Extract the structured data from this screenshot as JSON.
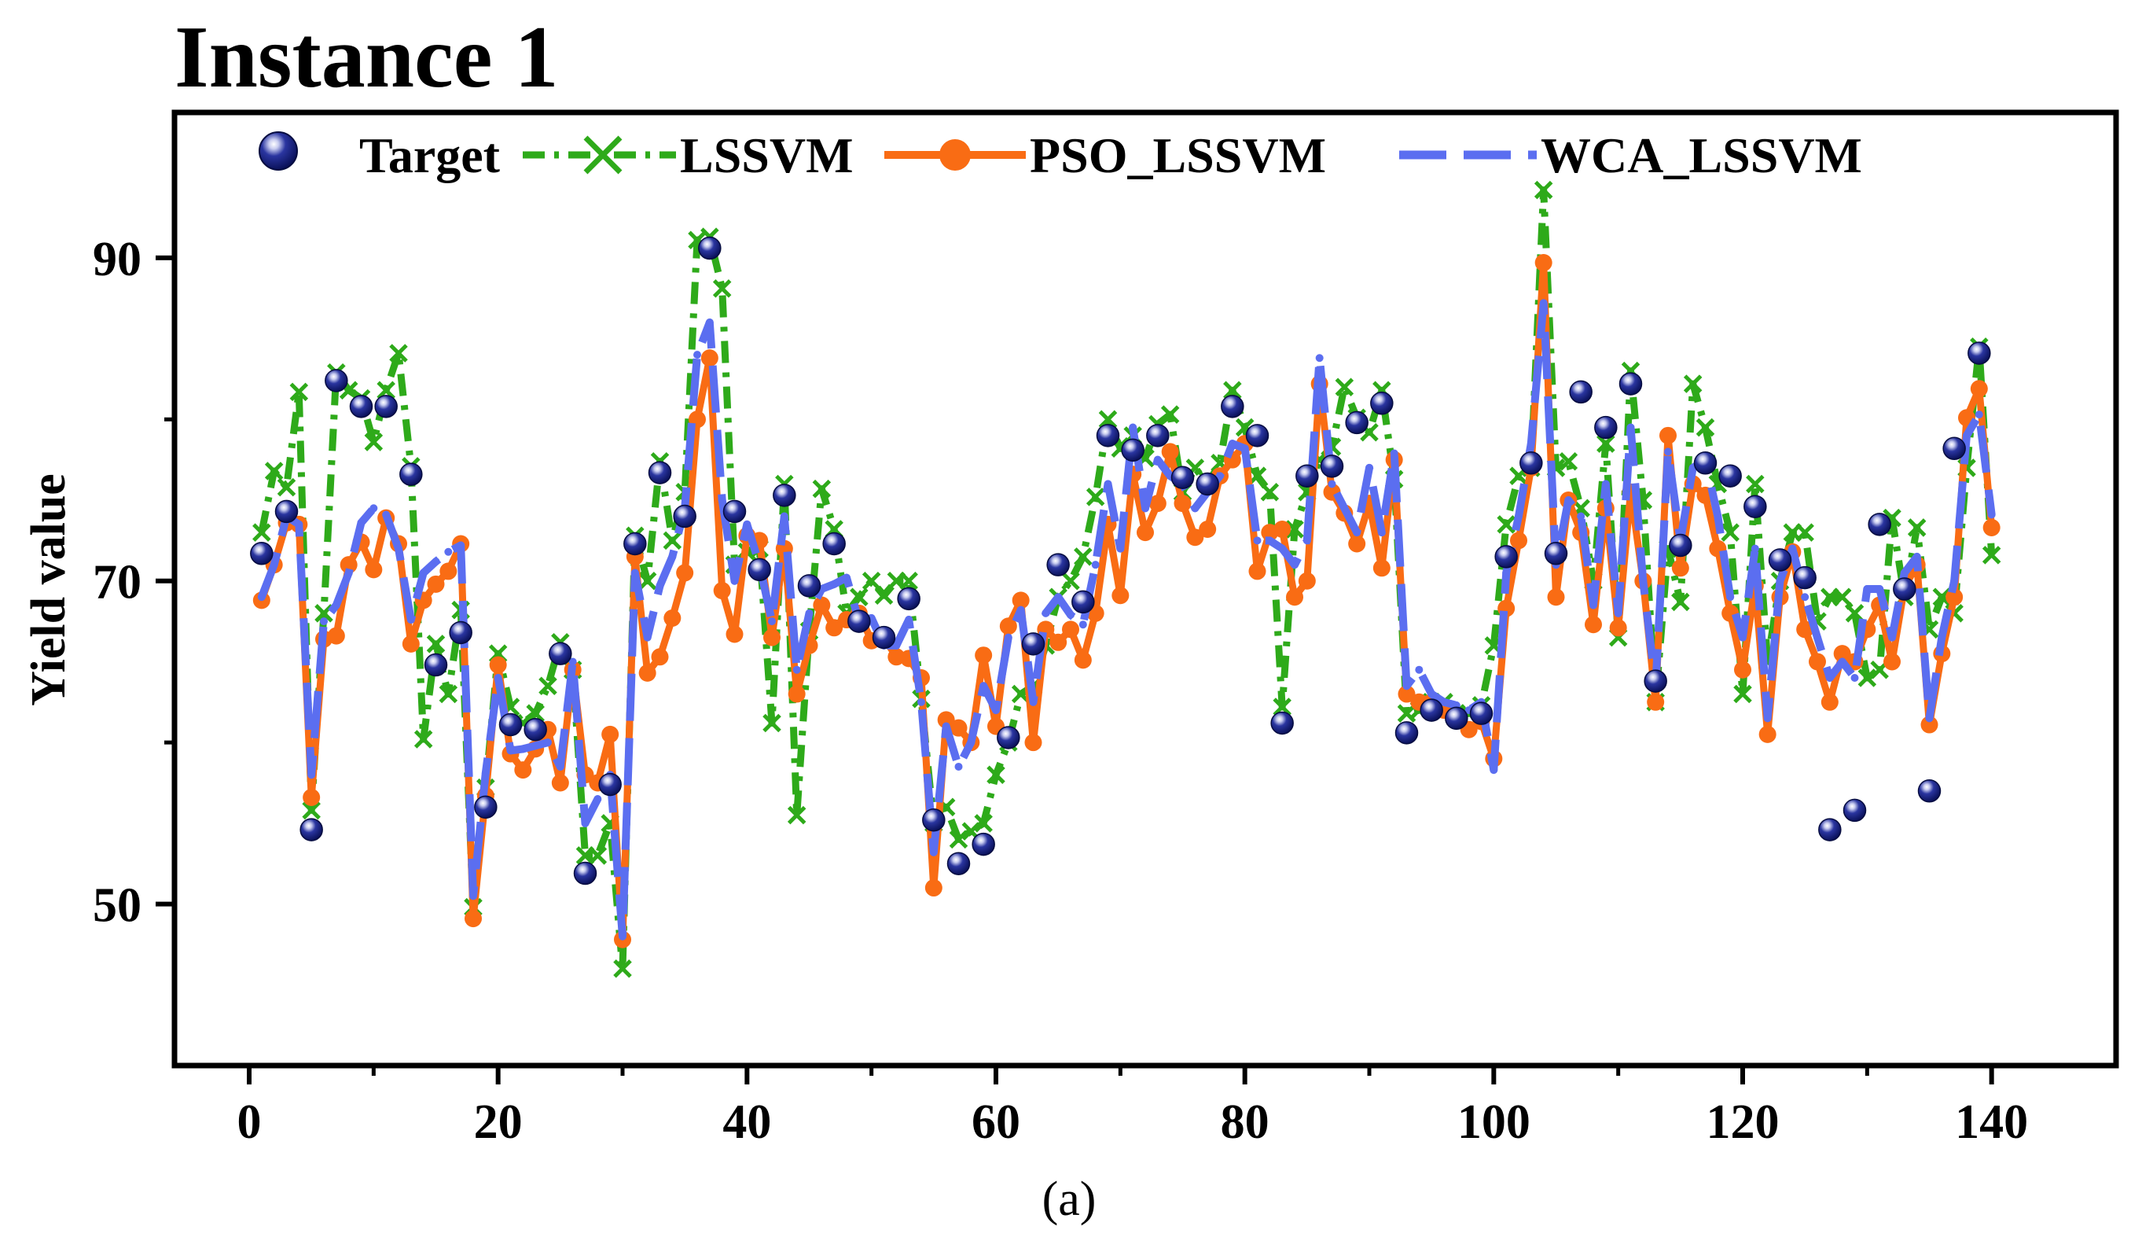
{
  "chart_data": {
    "type": "line",
    "title": "Instance 1",
    "caption": "(a)",
    "xlabel": "",
    "ylabel": "Yield value",
    "xlim": [
      -6,
      150
    ],
    "ylim": [
      40,
      99
    ],
    "xticks": [
      0,
      20,
      40,
      60,
      80,
      100,
      120,
      140
    ],
    "yticks_labeled": [
      50,
      70,
      90
    ],
    "yticks_minor": [
      60,
      80
    ],
    "legend_position": "top",
    "x": [
      1,
      2,
      3,
      4,
      5,
      6,
      7,
      8,
      9,
      10,
      11,
      12,
      13,
      14,
      15,
      16,
      17,
      18,
      19,
      20,
      21,
      22,
      23,
      24,
      25,
      26,
      27,
      28,
      29,
      30,
      31,
      32,
      33,
      34,
      35,
      36,
      37,
      38,
      39,
      40,
      41,
      42,
      43,
      44,
      45,
      46,
      47,
      48,
      49,
      50,
      51,
      52,
      53,
      54,
      55,
      56,
      57,
      58,
      59,
      60,
      61,
      62,
      63,
      64,
      65,
      66,
      67,
      68,
      69,
      70,
      71,
      72,
      73,
      74,
      75,
      76,
      77,
      78,
      79,
      80,
      81,
      82,
      83,
      84,
      85,
      86,
      87,
      88,
      89,
      90,
      91,
      92,
      93,
      94,
      95,
      96,
      97,
      98,
      99,
      100,
      101,
      102,
      103,
      104,
      105,
      106,
      107,
      108,
      109,
      110,
      111,
      112,
      113,
      114,
      115,
      116,
      117,
      118,
      119,
      120,
      121,
      122,
      123,
      124,
      125,
      126,
      127,
      128,
      129,
      130,
      131,
      132,
      133,
      134,
      135,
      136,
      137,
      138,
      139,
      140
    ],
    "series": [
      {
        "name": "Target",
        "style": "markers",
        "color": "#0d1a6e",
        "values": [
          71.7,
          null,
          74.3,
          null,
          54.6,
          null,
          82.4,
          null,
          80.8,
          null,
          80.8,
          null,
          76.6,
          null,
          64.8,
          null,
          66.8,
          null,
          56.0,
          null,
          61.1,
          null,
          60.8,
          null,
          65.5,
          null,
          51.9,
          null,
          57.4,
          null,
          72.3,
          null,
          76.7,
          null,
          74.0,
          null,
          90.6,
          null,
          74.3,
          null,
          70.7,
          null,
          75.3,
          null,
          69.7,
          null,
          72.3,
          null,
          67.5,
          null,
          66.5,
          null,
          68.9,
          null,
          55.2,
          null,
          52.5,
          null,
          53.7,
          null,
          60.3,
          null,
          66.1,
          null,
          71.0,
          null,
          68.7,
          null,
          79.0,
          null,
          78.1,
          null,
          79.0,
          null,
          76.4,
          null,
          76.0,
          null,
          80.8,
          null,
          79.0,
          null,
          61.2,
          null,
          76.5,
          null,
          77.1,
          null,
          79.8,
          null,
          81.0,
          null,
          60.6,
          null,
          62.0,
          null,
          61.5,
          null,
          61.8,
          null,
          71.5,
          null,
          77.3,
          null,
          71.7,
          null,
          81.7,
          null,
          79.5,
          null,
          82.2,
          null,
          63.8,
          null,
          72.2,
          null,
          77.3,
          null,
          76.5,
          null,
          74.6,
          null,
          71.3,
          null,
          70.2,
          null,
          54.6,
          null,
          55.8,
          null,
          73.5,
          null,
          69.5,
          null,
          57.0,
          null,
          78.2,
          null,
          84.1,
          null
        ]
      },
      {
        "name": "LSSVM",
        "style": "dash-dot-x",
        "color": "#2eaa1a",
        "values": [
          73.0,
          76.8,
          75.8,
          81.7,
          55.8,
          68.0,
          82.9,
          81.8,
          81.3,
          78.6,
          81.8,
          84.1,
          77.1,
          60.2,
          66.1,
          63.0,
          68.2,
          49.8,
          57.2,
          65.5,
          62.2,
          61.2,
          61.8,
          63.5,
          66.2,
          64.5,
          53.0,
          53.0,
          55.0,
          46.0,
          72.8,
          70.0,
          77.4,
          72.5,
          75.5,
          91.1,
          91.3,
          88.1,
          71.0,
          71.8,
          72.0,
          61.2,
          76.0,
          55.5,
          66.9,
          75.7,
          73.2,
          68.0,
          69.0,
          70.0,
          69.1,
          70.0,
          70.0,
          62.7,
          55.0,
          56.0,
          54.0,
          54.5,
          55.0,
          58.0,
          60.0,
          63.0,
          63.5,
          66.0,
          69.0,
          70.0,
          71.5,
          75.2,
          80.0,
          78.2,
          79.0,
          77.6,
          79.7,
          80.3,
          75.5,
          77.0,
          76.0,
          77.3,
          81.8,
          79.5,
          76.5,
          75.5,
          62.2,
          73.2,
          75.5,
          77.5,
          78.3,
          82.0,
          80.1,
          79.2,
          81.8,
          76.3,
          61.8,
          62.0,
          62.5,
          62.5,
          61.8,
          61.8,
          62.3,
          66.0,
          73.5,
          76.5,
          77.0,
          94.2,
          77.0,
          77.4,
          74.5,
          70.0,
          78.5,
          66.5,
          83.0,
          75.0,
          62.5,
          72.0,
          68.7,
          82.2,
          79.5,
          76.0,
          73.0,
          63.0,
          76.0,
          65.0,
          70.0,
          73.0,
          73.0,
          67.5,
          69.0,
          69.0,
          68.0,
          64.0,
          64.5,
          73.9,
          69.0,
          73.3,
          67.0,
          69.0,
          68.0,
          77.0,
          84.5,
          71.6
        ]
      },
      {
        "name": "PSO_LSSVM",
        "style": "solid-dot",
        "color": "#f96c14",
        "values": [
          68.8,
          71.0,
          73.6,
          73.5,
          56.6,
          66.4,
          66.6,
          71.0,
          72.4,
          70.7,
          73.9,
          72.3,
          66.1,
          68.8,
          69.8,
          70.6,
          72.3,
          49.1,
          56.7,
          64.8,
          59.3,
          58.3,
          59.6,
          60.8,
          57.5,
          64.5,
          58.0,
          57.5,
          60.5,
          47.8,
          71.5,
          64.3,
          65.3,
          67.7,
          70.5,
          80.0,
          83.8,
          69.4,
          66.7,
          72.8,
          72.5,
          66.5,
          72.0,
          63.0,
          66.0,
          68.5,
          67.1,
          67.6,
          68.0,
          66.3,
          66.5,
          65.3,
          65.2,
          64.0,
          51.0,
          61.4,
          60.9,
          60.0,
          65.4,
          61.0,
          67.2,
          68.8,
          60.0,
          67.0,
          66.2,
          67.0,
          65.1,
          68.0,
          73.5,
          69.1,
          76.6,
          73.0,
          74.8,
          78.0,
          74.8,
          72.7,
          73.2,
          76.5,
          77.5,
          78.5,
          70.6,
          73.0,
          73.2,
          69.0,
          70.0,
          82.2,
          75.5,
          74.2,
          72.3,
          74.8,
          70.8,
          77.5,
          63.0,
          62.5,
          62.5,
          62.0,
          61.5,
          60.8,
          61.3,
          59.0,
          68.3,
          72.5,
          77.0,
          89.7,
          69.0,
          75.0,
          73.0,
          67.3,
          74.5,
          67.1,
          75.5,
          70.0,
          62.5,
          79.0,
          70.8,
          76.0,
          75.3,
          72.0,
          68.0,
          64.5,
          69.7,
          60.5,
          69.0,
          71.8,
          67.0,
          65.0,
          62.5,
          65.5,
          65.0,
          67.0,
          68.5,
          65.0,
          69.6,
          71.0,
          61.1,
          65.5,
          69.0,
          80.1,
          81.9,
          73.3
        ]
      },
      {
        "name": "WCA_LSSVM",
        "style": "dashed",
        "color": "#5b6ef0",
        "values": [
          69.0,
          71.0,
          74.0,
          73.5,
          58.0,
          67.5,
          68.5,
          70.5,
          73.6,
          74.5,
          74.1,
          72.0,
          67.6,
          70.5,
          71.2,
          71.8,
          72.2,
          50.5,
          58.1,
          64.0,
          59.5,
          59.6,
          59.8,
          60.0,
          58.5,
          65.0,
          55.0,
          56.5,
          58.0,
          48.0,
          70.5,
          66.5,
          69.7,
          71.5,
          74.5,
          84.0,
          86.0,
          75.0,
          70.0,
          73.5,
          71.0,
          67.5,
          74.0,
          64.5,
          68.0,
          69.5,
          69.8,
          70.2,
          67.5,
          67.7,
          66.0,
          66.0,
          67.6,
          62.5,
          53.2,
          61.0,
          58.5,
          60.0,
          63.5,
          62.0,
          66.5,
          68.2,
          62.5,
          68.0,
          69.0,
          67.9,
          67.3,
          71.0,
          76.0,
          72.0,
          79.5,
          74.5,
          77.5,
          76.5,
          76.0,
          74.5,
          75.5,
          76.5,
          78.5,
          78.2,
          72.5,
          72.5,
          72.0,
          71.0,
          72.5,
          83.8,
          76.0,
          74.5,
          73.0,
          77.0,
          73.0,
          77.9,
          63.5,
          64.5,
          63.0,
          62.5,
          62.3,
          62.0,
          62.5,
          58.3,
          70.5,
          74.0,
          78.5,
          87.2,
          71.0,
          75.0,
          74.0,
          68.5,
          76.0,
          68.0,
          79.5,
          70.0,
          63.5,
          78.0,
          72.5,
          77.0,
          77.5,
          74.0,
          69.0,
          66.5,
          72.0,
          61.5,
          70.0,
          72.0,
          69.0,
          66.5,
          64.0,
          65.0,
          64.0,
          69.5,
          69.5,
          66.5,
          70.5,
          71.5,
          61.5,
          66.5,
          70.0,
          79.0,
          80.3,
          74.1
        ]
      }
    ]
  }
}
